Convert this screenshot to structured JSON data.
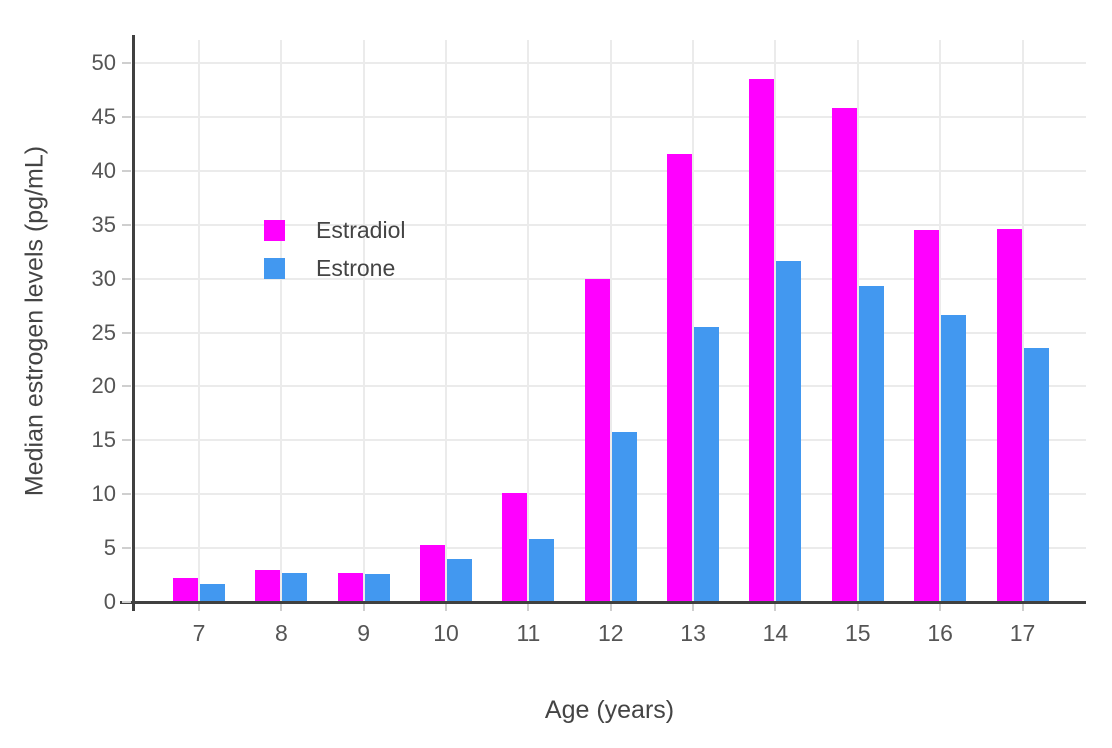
{
  "chart_data": {
    "type": "bar",
    "title": "",
    "xlabel": "Age (years)",
    "ylabel": "Median estrogen levels (pg/mL)",
    "categories": [
      "7",
      "8",
      "9",
      "10",
      "11",
      "12",
      "13",
      "14",
      "15",
      "16",
      "17"
    ],
    "series": [
      {
        "name": "Estradiol",
        "color": "#ff00ff",
        "values": [
          2.2,
          3.0,
          2.7,
          5.3,
          10.1,
          30.0,
          41.6,
          48.5,
          45.8,
          34.5,
          34.6
        ]
      },
      {
        "name": "Estrone",
        "color": "#4298f0",
        "values": [
          1.7,
          2.7,
          2.6,
          4.0,
          5.8,
          15.8,
          25.5,
          31.6,
          29.3,
          26.6,
          23.6
        ]
      }
    ],
    "ylim": [
      0,
      50
    ],
    "ytick_step": 5,
    "grid": true,
    "legend_position": "inside-top-left"
  },
  "colors": {
    "background": "#ffffff",
    "gridline": "#ebebeb",
    "axis_line": "#404040",
    "tick_mark": "#cfcfcf",
    "tick_label": "#555555",
    "axis_title": "#444444"
  }
}
